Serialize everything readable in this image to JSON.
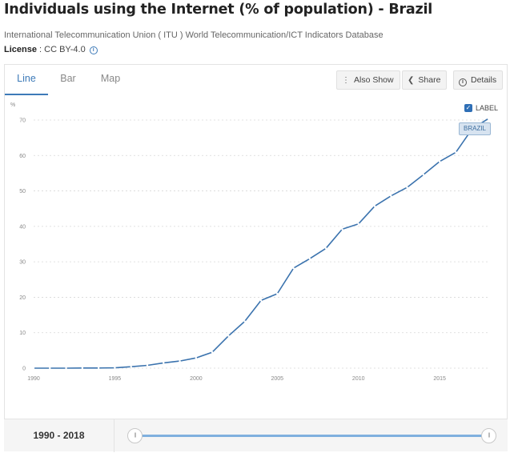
{
  "header": {
    "title": "Individuals using the Internet (% of population) - Brazil",
    "source": "International Telecommunication Union ( ITU ) World Telecommunication/ICT Indicators Database",
    "license_label": "License",
    "license_value": "CC BY-4.0",
    "info_icon": "i"
  },
  "tabs": [
    {
      "label": "Line",
      "active": true
    },
    {
      "label": "Bar",
      "active": false
    },
    {
      "label": "Map",
      "active": false
    }
  ],
  "toolbar": {
    "also_show_label": "Also Show",
    "share_label": "Share",
    "details_label": "Details",
    "also_show_icon": "vertical-dots-icon",
    "share_icon": "share-icon",
    "details_icon": "info-icon"
  },
  "legend": {
    "checkbox_label": "LABEL",
    "checked": true,
    "series_tag": "BRAZIL"
  },
  "footer": {
    "range_text": "1990 - 2018",
    "range_start": 1990,
    "range_end": 2018
  },
  "colors": {
    "accent": "#3d7ab8",
    "line": "#3b73ae",
    "slider": "#7fb0de"
  },
  "chart_data": {
    "type": "line",
    "title": "",
    "xlabel": "",
    "ylabel": "%",
    "xlim": [
      1990,
      2018
    ],
    "ylim": [
      0,
      70
    ],
    "grid": true,
    "legend": "top-right",
    "x_ticks": [
      1990,
      1995,
      2000,
      2005,
      2010,
      2015
    ],
    "y_ticks": [
      0,
      10,
      20,
      30,
      40,
      50,
      60,
      70
    ],
    "series": [
      {
        "name": "BRAZIL",
        "x": [
          1990,
          1991,
          1992,
          1993,
          1994,
          1995,
          1996,
          1997,
          1998,
          1999,
          2000,
          2001,
          2002,
          2003,
          2004,
          2005,
          2006,
          2007,
          2008,
          2009,
          2010,
          2011,
          2012,
          2013,
          2014,
          2015,
          2016,
          2017,
          2018
        ],
        "values": [
          0,
          0,
          0.01,
          0.04,
          0.04,
          0.1,
          0.4,
          0.8,
          1.5,
          2.0,
          2.9,
          4.5,
          9.1,
          13.2,
          19.1,
          21.0,
          28.2,
          30.9,
          33.8,
          39.2,
          40.7,
          45.7,
          48.6,
          51.0,
          54.6,
          58.3,
          60.9,
          67.5,
          70.4
        ]
      }
    ]
  }
}
